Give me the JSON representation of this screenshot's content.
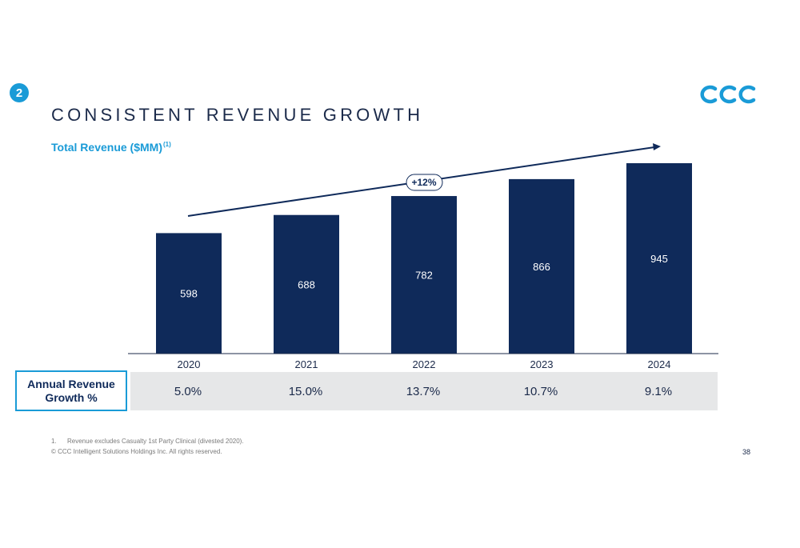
{
  "slide": {
    "section_number": "2",
    "title": "CONSISTENT REVENUE GROWTH",
    "page_number": "38",
    "footnote_number": "1.",
    "footnote_text": "Revenue excludes Casualty 1st Party Clinical (divested 2020).",
    "copyright": "© CCC Intelligent Solutions Holdings Inc. All rights reserved.",
    "logo_name": "ccc-logo",
    "brand_colors": {
      "navy": "#0f2a5a",
      "accent_blue": "#1a9bd7",
      "table_gray": "#e6e7e8"
    }
  },
  "chart_data": {
    "type": "bar",
    "title": "Total Revenue ($MM)",
    "title_footnote": "(1)",
    "categories": [
      "2020",
      "2021",
      "2022",
      "2023",
      "2024"
    ],
    "values": [
      598,
      688,
      782,
      866,
      945
    ],
    "ylim": [
      0,
      945
    ],
    "bar_color": "#0f2a5a",
    "grid": false,
    "trend_annotation": "+12%"
  },
  "growth_table": {
    "label": "Annual Revenue Growth %",
    "values": [
      "5.0%",
      "15.0%",
      "13.7%",
      "10.7%",
      "9.1%"
    ]
  }
}
